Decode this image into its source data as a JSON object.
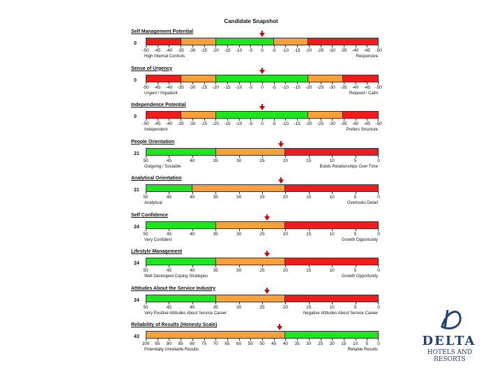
{
  "page": {
    "title": "Candidate Snapshot"
  },
  "colors": {
    "red": "#ee1c1c",
    "orange": "#f7a13c",
    "green": "#1ee61e",
    "marker": "#d00000",
    "brand": "#1f3f7a"
  },
  "sections": [
    {
      "label": "Self Management Potential",
      "score": "0",
      "ticks": [
        "-50",
        "-45",
        "-40",
        "-35",
        "-30",
        "-25",
        "-20",
        "-15",
        "-10",
        "-5",
        "0",
        "-5",
        "-10",
        "-15",
        "-20",
        "-25",
        "-30",
        "-35",
        "-40",
        "-45",
        "-50"
      ],
      "marker": 10,
      "bands": [
        [
          "red",
          0,
          3
        ],
        [
          "orange",
          3,
          6
        ],
        [
          "green",
          6,
          11
        ],
        [
          "orange",
          11,
          14
        ],
        [
          "red",
          14,
          20
        ]
      ],
      "left_end": "High Internal Controls",
      "right_end": "Responsive"
    },
    {
      "label": "Sense of Urgency",
      "score": "0",
      "ticks": [
        "-50",
        "-45",
        "-40",
        "-35",
        "-30",
        "-25",
        "-20",
        "-15",
        "-10",
        "-5",
        "0",
        "-5",
        "-10",
        "-15",
        "-20",
        "-25",
        "-30",
        "-35",
        "-40",
        "-45",
        "-50"
      ],
      "marker": 10,
      "bands": [
        [
          "red",
          0,
          3
        ],
        [
          "orange",
          3,
          6
        ],
        [
          "green",
          6,
          14
        ],
        [
          "orange",
          14,
          17
        ],
        [
          "red",
          17,
          20
        ]
      ],
      "left_end": "Urgent / Impatient",
      "right_end": "Relaxed / Calm"
    },
    {
      "label": "Independence Potential",
      "score": "0",
      "ticks": [
        "-50",
        "-45",
        "-40",
        "-35",
        "-30",
        "-25",
        "-20",
        "-15",
        "-10",
        "-5",
        "0",
        "-5",
        "-10",
        "-15",
        "-20",
        "-25",
        "-30",
        "-35",
        "-40",
        "-45",
        "-50"
      ],
      "marker": 10,
      "bands": [
        [
          "red",
          0,
          3
        ],
        [
          "orange",
          3,
          6
        ],
        [
          "green",
          6,
          14
        ],
        [
          "orange",
          14,
          17
        ],
        [
          "red",
          17,
          20
        ]
      ],
      "left_end": "Independent",
      "right_end": "Prefers Structure"
    },
    {
      "label": "People Orientation",
      "score": "21",
      "ticks": [
        "50",
        "45",
        "40",
        "35",
        "30",
        "25",
        "20",
        "15",
        "10",
        "5",
        "0"
      ],
      "marker": 5.8,
      "bands": [
        [
          "green",
          0,
          3
        ],
        [
          "orange",
          3,
          6
        ],
        [
          "red",
          6,
          10
        ]
      ],
      "left_end": "Outgoing / Sociable",
      "right_end": "Builds Relationships Over Time"
    },
    {
      "label": "Analytical Orientation",
      "score": "21",
      "ticks": [
        "50",
        "45",
        "40",
        "35",
        "30",
        "25",
        "20",
        "15",
        "10",
        "5",
        "0"
      ],
      "marker": 5.8,
      "bands": [
        [
          "green",
          0,
          2
        ],
        [
          "orange",
          2,
          6
        ],
        [
          "red",
          6,
          10
        ]
      ],
      "left_end": "Analytical",
      "right_end": "Overlooks Detail"
    },
    {
      "label": "Self Confidence",
      "score": "24",
      "ticks": [
        "50",
        "45",
        "40",
        "35",
        "30",
        "25",
        "20",
        "15",
        "10",
        "5",
        "0"
      ],
      "marker": 5.2,
      "bands": [
        [
          "green",
          0,
          3
        ],
        [
          "orange",
          3,
          6
        ],
        [
          "red",
          6,
          10
        ]
      ],
      "left_end": "Very Confident",
      "right_end": "Growth Opportunity"
    },
    {
      "label": "Lifestyle Management",
      "score": "24",
      "ticks": [
        "50",
        "45",
        "40",
        "35",
        "30",
        "25",
        "20",
        "15",
        "10",
        "5",
        "0"
      ],
      "marker": 5.2,
      "bands": [
        [
          "green",
          0,
          3
        ],
        [
          "orange",
          3,
          6
        ],
        [
          "red",
          6,
          10
        ]
      ],
      "left_end": "Well Developed Coping Strategies",
      "right_end": "Growth Opportunity"
    },
    {
      "label": "Attitudes About the Service Industry",
      "score": "24",
      "ticks": [
        "50",
        "45",
        "40",
        "35",
        "30",
        "25",
        "20",
        "15",
        "10",
        "5",
        "0"
      ],
      "marker": 5.2,
      "bands": [
        [
          "green",
          0,
          3
        ],
        [
          "orange",
          3,
          6
        ],
        [
          "red",
          6,
          10
        ]
      ],
      "left_end": "Very Positive Attitudes About Service Career",
      "right_end": "Negative Attitudes About Service Career"
    },
    {
      "label": "Reliability of Results (Honesty Scale)",
      "score": "43",
      "ticks": [
        "100",
        "95",
        "90",
        "85",
        "80",
        "75",
        "70",
        "65",
        "60",
        "55",
        "50",
        "45",
        "40",
        "35",
        "30",
        "25",
        "20",
        "15",
        "10",
        "5",
        "0"
      ],
      "marker": 11.5,
      "bands": [
        [
          "orange",
          0,
          12
        ],
        [
          "green",
          12,
          20
        ]
      ],
      "left_end": "Potentially Unreliable Results",
      "right_end": "Reliable Results"
    }
  ],
  "logo": {
    "word": "DELTA",
    "sub": "HOTELS AND RESORTS",
    "icon": "delta-d-logo-icon"
  }
}
